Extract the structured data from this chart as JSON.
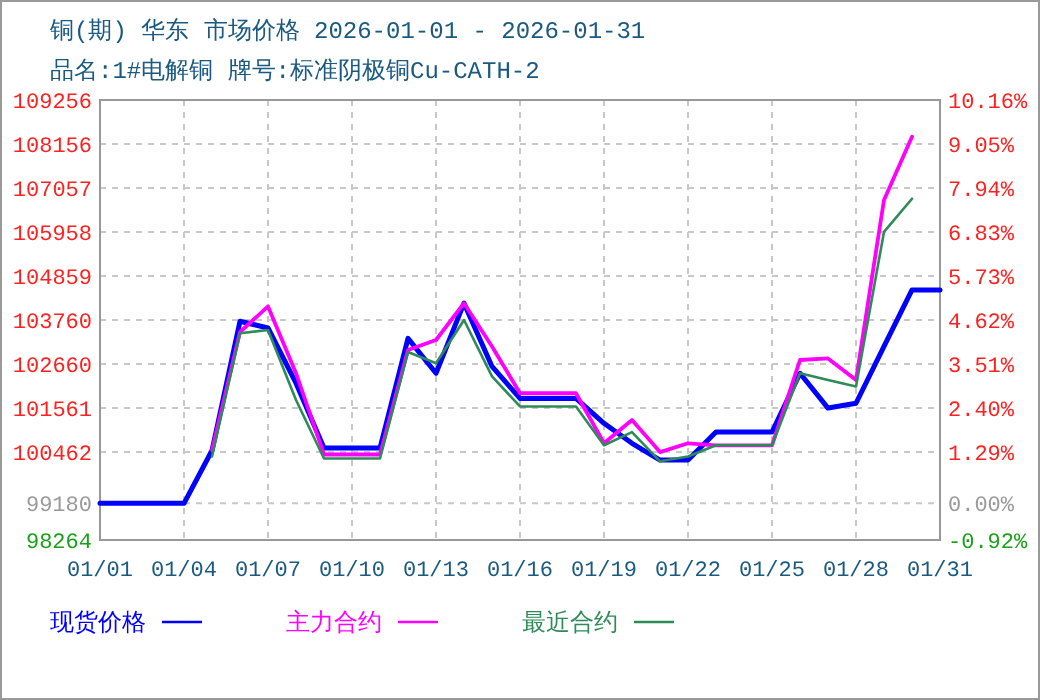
{
  "chart_data": {
    "type": "line",
    "title": "铜(期) 华东 市场价格 2026-01-01 - 2026-01-31",
    "subtitle": "品名:1#电解铜 牌号:标准阴极铜Cu-CATH-2",
    "x": [
      "2026-01-01",
      "2026-01-02",
      "2026-01-03",
      "2026-01-04",
      "2026-01-05",
      "2026-01-06",
      "2026-01-07",
      "2026-01-08",
      "2026-01-09",
      "2026-01-10",
      "2026-01-11",
      "2026-01-12",
      "2026-01-13",
      "2026-01-14",
      "2026-01-15",
      "2026-01-16",
      "2026-01-17",
      "2026-01-18",
      "2026-01-19",
      "2026-01-20",
      "2026-01-21",
      "2026-01-22",
      "2026-01-23",
      "2026-01-24",
      "2026-01-25",
      "2026-01-26",
      "2026-01-27",
      "2026-01-28",
      "2026-01-29",
      "2026-01-30",
      "2026-01-31"
    ],
    "series": [
      {
        "name": "现货价格",
        "color": "#0000ff",
        "values": [
          99180,
          99180,
          99180,
          99180,
          100500,
          103730,
          103560,
          102180,
          100560,
          100560,
          100560,
          103300,
          102430,
          104180,
          102600,
          101800,
          101800,
          101800,
          101180,
          100680,
          100260,
          100260,
          100960,
          100960,
          100960,
          102430,
          101560,
          101680,
          103100,
          104510,
          104510
        ]
      },
      {
        "name": "主力合约",
        "color": "#ff00ff",
        "values": [
          null,
          null,
          null,
          null,
          100510,
          103460,
          104100,
          102430,
          100400,
          100400,
          100400,
          103010,
          103260,
          104180,
          103100,
          101930,
          101930,
          101930,
          100680,
          101260,
          100460,
          100680,
          100630,
          100630,
          100630,
          102760,
          102800,
          102260,
          106760,
          108340,
          null
        ]
      },
      {
        "name": "最近合约",
        "color": "#2e8b57",
        "values": [
          null,
          null,
          null,
          null,
          100350,
          103430,
          103510,
          101760,
          100300,
          100300,
          100300,
          102960,
          102680,
          103760,
          102350,
          101600,
          101600,
          101600,
          100630,
          100960,
          100230,
          100350,
          100630,
          100630,
          100630,
          102430,
          102260,
          102100,
          105960,
          106790,
          null
        ]
      }
    ],
    "xlim": [
      "2026-01-01",
      "2026-01-31"
    ],
    "xticks": [
      {
        "value": "2026-01-01",
        "label": "01/01"
      },
      {
        "value": "2026-01-04",
        "label": "01/04"
      },
      {
        "value": "2026-01-07",
        "label": "01/07"
      },
      {
        "value": "2026-01-10",
        "label": "01/10"
      },
      {
        "value": "2026-01-13",
        "label": "01/13"
      },
      {
        "value": "2026-01-16",
        "label": "01/16"
      },
      {
        "value": "2026-01-19",
        "label": "01/19"
      },
      {
        "value": "2026-01-22",
        "label": "01/22"
      },
      {
        "value": "2026-01-25",
        "label": "01/25"
      },
      {
        "value": "2026-01-28",
        "label": "01/28"
      },
      {
        "value": "2026-01-31",
        "label": "01/31"
      }
    ],
    "ylim": [
      98264,
      109256
    ],
    "yticks": [
      98264,
      99180,
      100462,
      101561,
      102660,
      103760,
      104859,
      105958,
      107057,
      108156,
      109256
    ],
    "y2lim": [
      -0.92,
      10.16
    ],
    "y2ticks": [
      {
        "value": -0.92,
        "label": "-0.92%"
      },
      {
        "value": 0,
        "label": "0.00%"
      },
      {
        "value": 1.29,
        "label": "1.29%"
      },
      {
        "value": 2.4,
        "label": "2.40%"
      },
      {
        "value": 3.51,
        "label": "3.51%"
      },
      {
        "value": 4.62,
        "label": "4.62%"
      },
      {
        "value": 5.73,
        "label": "5.73%"
      },
      {
        "value": 6.83,
        "label": "6.83%"
      },
      {
        "value": 7.94,
        "label": "7.94%"
      },
      {
        "value": 9.05,
        "label": "9.05%"
      },
      {
        "value": 10.16,
        "label": "10.16%"
      }
    ],
    "grid": true,
    "legend": "bottom",
    "marker": "none",
    "line_style": "solid"
  }
}
